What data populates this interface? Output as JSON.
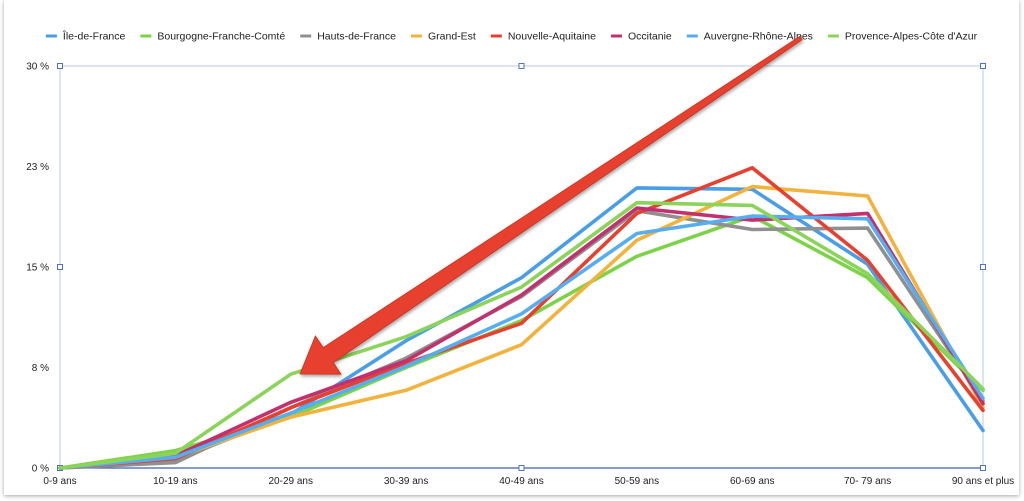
{
  "chart_data": {
    "type": "line",
    "categories": [
      "0-9 ans",
      "10-19 ans",
      "20-29 ans",
      "30-39 ans",
      "40-49 ans",
      "50-59 ans",
      "60-69 ans",
      "70- 79 ans",
      "90 ans et plus"
    ],
    "y_ticks": [
      "0 %",
      "8 %",
      "15 %",
      "23 %",
      "30 %"
    ],
    "ylim": [
      0,
      30
    ],
    "grid": false,
    "legend_position": "top",
    "series": [
      {
        "name": "Île-de-France",
        "color": "#4a9ee8",
        "values": [
          0,
          0.6,
          4.0,
          9.5,
          14.2,
          20.9,
          20.8,
          15.2,
          2.8
        ]
      },
      {
        "name": "Bourgogne-Franche-Comté",
        "color": "#7dd348",
        "values": [
          0,
          1.3,
          3.8,
          7.5,
          11.0,
          15.8,
          18.8,
          14.2,
          5.8
        ]
      },
      {
        "name": "Hauts-de-France",
        "color": "#909090",
        "values": [
          0,
          0.4,
          4.5,
          8.2,
          12.8,
          19.2,
          17.8,
          17.9,
          5.0
        ]
      },
      {
        "name": "Grand-Est",
        "color": "#f2b33d",
        "values": [
          0,
          0.8,
          3.8,
          5.8,
          9.2,
          17.0,
          21.0,
          20.3,
          4.5
        ]
      },
      {
        "name": "Nouvelle-Aquitaine",
        "color": "#e8402f",
        "values": [
          0,
          0.7,
          4.5,
          7.8,
          10.8,
          19.0,
          22.4,
          15.5,
          4.3
        ]
      },
      {
        "name": "Occitanie",
        "color": "#c2306e",
        "values": [
          0,
          0.9,
          4.9,
          8.0,
          12.9,
          19.4,
          18.5,
          19.0,
          4.8
        ]
      },
      {
        "name": "Auvergne-Rhône-Alpes",
        "color": "#56aef0",
        "values": [
          0,
          0.8,
          4.1,
          7.6,
          11.5,
          17.5,
          18.8,
          18.6,
          5.2
        ]
      },
      {
        "name": "Provence-Alpes-Côte d'Azur",
        "color": "#8ad45a",
        "values": [
          0,
          1.1,
          7.0,
          9.8,
          13.5,
          19.8,
          19.6,
          14.5,
          5.9
        ]
      }
    ],
    "annotation": {
      "type": "arrow",
      "color": "#e8402f"
    }
  }
}
